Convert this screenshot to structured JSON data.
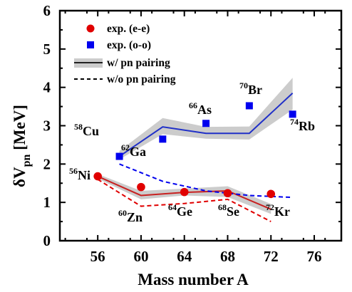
{
  "chart_data": {
    "type": "line",
    "xlabel": "Mass number A",
    "ylabel": {
      "main": "δV",
      "sub": "pn",
      "unit": " [MeV]"
    },
    "xlim": [
      52.5,
      78.5
    ],
    "ylim": [
      0,
      6
    ],
    "x_ticks": [
      "56",
      "60",
      "64",
      "68",
      "72",
      "76"
    ],
    "y_ticks": [
      "0",
      "1",
      "2",
      "3",
      "4",
      "5",
      "6"
    ],
    "colors": {
      "red": "#e00000",
      "blue": "#0000ee",
      "band": "#cccccc"
    },
    "legend": [
      {
        "label": "exp. (e-e)",
        "marker": "red-circle"
      },
      {
        "label": "exp. (o-o)",
        "marker": "blue-square"
      },
      {
        "label": "w/ pn pairing",
        "marker": "solid-line-with-gray-band"
      },
      {
        "label": "w/o pn pairing",
        "marker": "dashed-line"
      }
    ],
    "series": [
      {
        "name": "exp. (e-e)",
        "kind": "scatter",
        "color": "#e00000",
        "x": [
          56,
          60,
          64,
          68,
          72
        ],
        "y": [
          1.68,
          1.4,
          1.27,
          1.24,
          1.22
        ]
      },
      {
        "name": "exp. (o-o)",
        "kind": "scatter",
        "color": "#0000ee",
        "x": [
          58,
          62,
          66,
          70,
          74
        ],
        "y": [
          2.2,
          2.65,
          3.06,
          3.52,
          3.3
        ]
      },
      {
        "kind": "solid",
        "color": "#c82020",
        "x": [
          56,
          60,
          64,
          68,
          72
        ],
        "y": [
          1.68,
          1.18,
          1.26,
          1.3,
          0.82
        ]
      },
      {
        "kind": "dashed",
        "color": "#e00000",
        "x": [
          56,
          60,
          64,
          68,
          72
        ],
        "y": [
          1.6,
          0.9,
          0.97,
          1.08,
          0.5
        ]
      },
      {
        "kind": "solid",
        "color": "#2030c8",
        "x": [
          58,
          62,
          66,
          70,
          74
        ],
        "y": [
          2.2,
          2.97,
          2.8,
          2.8,
          3.85
        ]
      },
      {
        "kind": "dashed",
        "color": "#0000ee",
        "x": [
          58,
          62,
          66,
          70,
          74
        ],
        "y": [
          2.0,
          1.55,
          1.3,
          1.18,
          1.13
        ]
      },
      {
        "kind": "band",
        "color": "#cccccc",
        "x": [
          56,
          60,
          64,
          68,
          72
        ],
        "lower": [
          1.62,
          1.08,
          1.18,
          1.14,
          0.7
        ],
        "upper": [
          1.74,
          1.3,
          1.36,
          1.42,
          0.96
        ]
      },
      {
        "kind": "band",
        "color": "#cccccc",
        "x": [
          58,
          62,
          66,
          70,
          74
        ],
        "lower": [
          2.12,
          2.78,
          2.66,
          2.64,
          3.42
        ],
        "upper": [
          2.34,
          3.2,
          2.97,
          2.98,
          4.25
        ]
      }
    ],
    "annotations": [
      {
        "mass": "58",
        "element": "Cu"
      },
      {
        "mass": "62",
        "element": "Ga"
      },
      {
        "mass": "66",
        "element": "As"
      },
      {
        "mass": "70",
        "element": "Br"
      },
      {
        "mass": "74",
        "element": "Rb"
      },
      {
        "mass": "56",
        "element": "Ni"
      },
      {
        "mass": "60",
        "element": "Zn"
      },
      {
        "mass": "64",
        "element": "Ge"
      },
      {
        "mass": "68",
        "element": "Se"
      },
      {
        "mass": "72",
        "element": "Kr"
      }
    ]
  }
}
